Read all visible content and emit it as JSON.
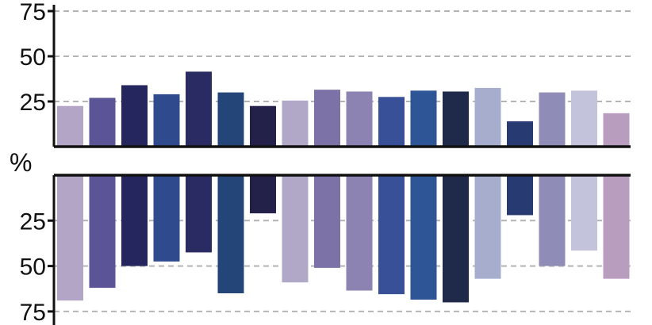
{
  "chart_data": {
    "type": "bar",
    "title": "",
    "ylabel": "%",
    "xlabel": "",
    "grid": true,
    "panels": [
      {
        "name": "",
        "direction": "up",
        "ylim": [
          0,
          75
        ],
        "ticks": [
          "25",
          "50",
          "75"
        ],
        "tick_values": [
          25,
          50,
          75
        ],
        "values": [
          22.5,
          27,
          34,
          29,
          41.5,
          30,
          22.5,
          25.5,
          31.5,
          30.5,
          27.5,
          31,
          30.5,
          32.5,
          14,
          30,
          31,
          18.5
        ]
      },
      {
        "name": "",
        "direction": "down",
        "ylim": [
          0,
          75
        ],
        "ticks": [
          "25",
          "50",
          "75"
        ],
        "tick_values": [
          25,
          50,
          75
        ],
        "values": [
          69,
          62,
          50,
          47.5,
          42.5,
          65,
          21,
          59,
          51,
          63.5,
          65.5,
          68.5,
          70,
          57,
          22,
          50,
          41.5,
          57
        ]
      }
    ],
    "bar_colors": [
      "#b3a5c5",
      "#5b5597",
      "#26265e",
      "#2f4b8e",
      "#2a2b63",
      "#234577",
      "#232149",
      "#b0a8c6",
      "#7c72a7",
      "#8c83b2",
      "#385097",
      "#2e5596",
      "#1f2a4b",
      "#a7aecd",
      "#283a72",
      "#8f8db7",
      "#c4c3dc",
      "#b99dbf"
    ]
  }
}
